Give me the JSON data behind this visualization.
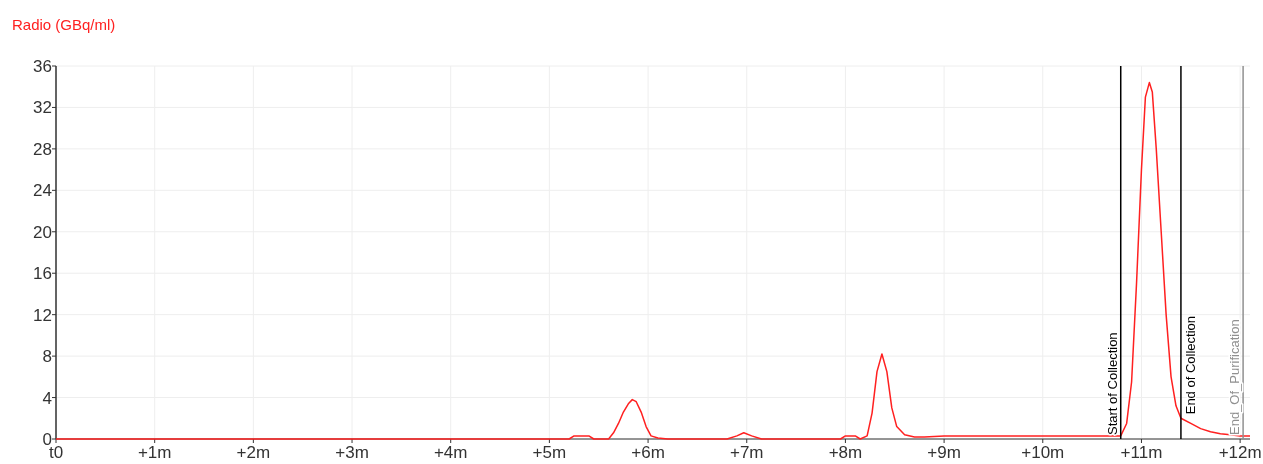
{
  "chart_data": {
    "type": "line",
    "ylabel": "Radio (GBq/ml)",
    "xlim": [
      0,
      12.1
    ],
    "ylim": [
      0,
      36
    ],
    "xticks": [
      {
        "value": 0,
        "label": "t0"
      },
      {
        "value": 1,
        "label": "+1m"
      },
      {
        "value": 2,
        "label": "+2m"
      },
      {
        "value": 3,
        "label": "+3m"
      },
      {
        "value": 4,
        "label": "+4m"
      },
      {
        "value": 5,
        "label": "+5m"
      },
      {
        "value": 6,
        "label": "+6m"
      },
      {
        "value": 7,
        "label": "+7m"
      },
      {
        "value": 8,
        "label": "+8m"
      },
      {
        "value": 9,
        "label": "+9m"
      },
      {
        "value": 10,
        "label": "+10m"
      },
      {
        "value": 11,
        "label": "+11m"
      },
      {
        "value": 12,
        "label": "+12m"
      }
    ],
    "yticks": [
      0,
      4,
      8,
      12,
      16,
      20,
      24,
      28,
      32,
      36
    ],
    "grid": true,
    "line_style": "solid",
    "marker": "none",
    "series": [
      {
        "color": "#ff2020",
        "x": [
          0,
          1,
          2,
          3,
          4,
          5,
          5.2,
          5.25,
          5.4,
          5.45,
          5.6,
          5.65,
          5.7,
          5.75,
          5.8,
          5.84,
          5.88,
          5.93,
          5.98,
          6.03,
          6.1,
          6.2,
          6.5,
          6.8,
          6.9,
          6.97,
          7.05,
          7.15,
          7.5,
          7.95,
          8.0,
          8.1,
          8.15,
          8.22,
          8.27,
          8.32,
          8.37,
          8.42,
          8.47,
          8.52,
          8.6,
          8.7,
          8.8,
          9.0,
          9.5,
          10,
          10.5,
          10.79,
          10.85,
          10.9,
          10.95,
          11.0,
          11.04,
          11.08,
          11.11,
          11.15,
          11.2,
          11.25,
          11.3,
          11.35,
          11.4,
          11.5,
          11.6,
          11.7,
          11.8,
          11.9,
          12.0,
          12.1
        ],
        "values": [
          0,
          0,
          0,
          0,
          0,
          0,
          0,
          0.3,
          0.3,
          0,
          0,
          0.6,
          1.5,
          2.6,
          3.4,
          3.8,
          3.6,
          2.6,
          1.2,
          0.3,
          0.1,
          0,
          0,
          0,
          0.3,
          0.6,
          0.3,
          0,
          0,
          0,
          0.3,
          0.3,
          0,
          0.3,
          2.5,
          6.5,
          8.2,
          6.5,
          3.0,
          1.2,
          0.4,
          0.2,
          0.2,
          0.3,
          0.3,
          0.3,
          0.3,
          0.3,
          1.5,
          5.5,
          15,
          26,
          33,
          34.4,
          33.5,
          28,
          20,
          12,
          6,
          3.2,
          2.0,
          1.5,
          1.0,
          0.7,
          0.5,
          0.4,
          0.3,
          0.3
        ]
      }
    ],
    "ref_lines": [
      {
        "axis": "x",
        "value": 10.79,
        "label": "Start of Collection",
        "color": "#000000"
      },
      {
        "axis": "x",
        "value": 11.4,
        "label": "End of Collection",
        "color": "#000000"
      },
      {
        "axis": "x",
        "value": 12.03,
        "label": "End_Of_Purification",
        "color": "#909090"
      }
    ]
  }
}
